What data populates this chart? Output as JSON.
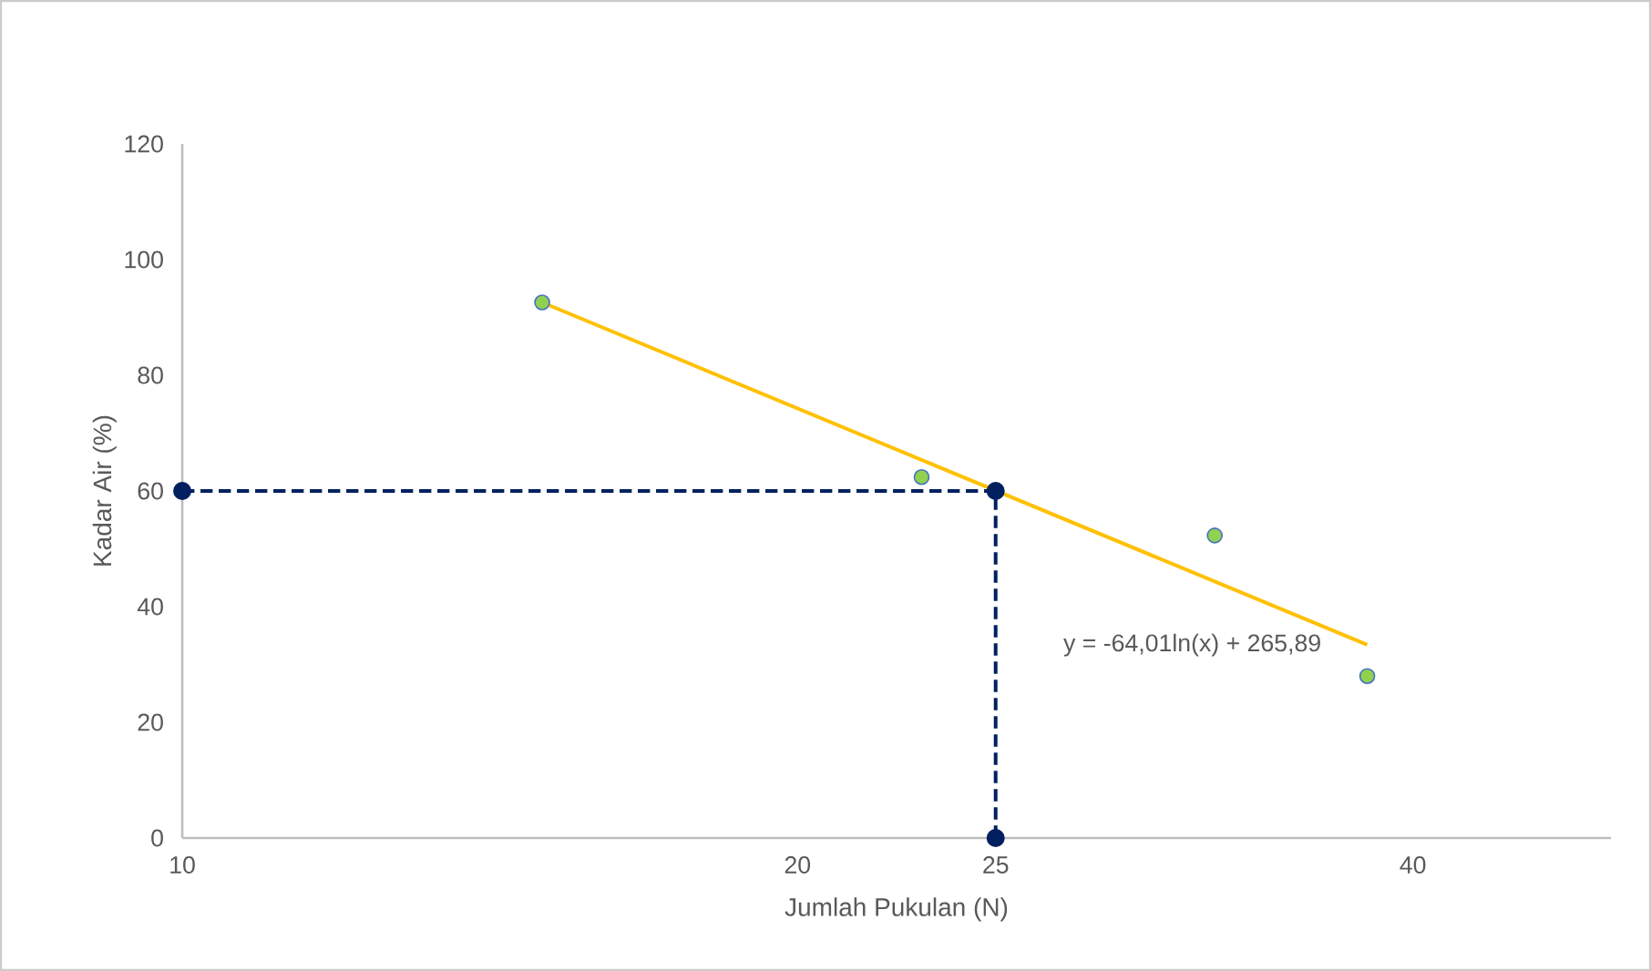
{
  "chart_data": {
    "type": "scatter",
    "xlabel": "Jumlah Pukulan (N)",
    "ylabel": "Kadar Air (%)",
    "log": "x",
    "grid": false,
    "legend": false,
    "xlim": [
      10,
      50
    ],
    "xticks": [
      10,
      20,
      25,
      40
    ],
    "ylim": [
      0,
      120
    ],
    "yticks": [
      0,
      20,
      40,
      60,
      80,
      100,
      120
    ],
    "annotations": [
      "y = -64,01ln(x) + 265,89"
    ],
    "series": [
      {
        "color": "#92d050",
        "marker": "circle",
        "x": [
          15,
          23,
          32,
          38
        ],
        "values": [
          92.6,
          62.4,
          52.3,
          28.0
        ]
      },
      {
        "type": "line",
        "color": "#ffc000",
        "marker": "none",
        "line_style": "solid",
        "x": [
          15,
          38
        ],
        "values": [
          92.6,
          33.4
        ]
      },
      {
        "type": "line",
        "color": "#002060",
        "marker": "circle",
        "line_style": "dashed",
        "x": [
          10,
          25,
          25
        ],
        "values": [
          60,
          60,
          0
        ]
      }
    ]
  }
}
